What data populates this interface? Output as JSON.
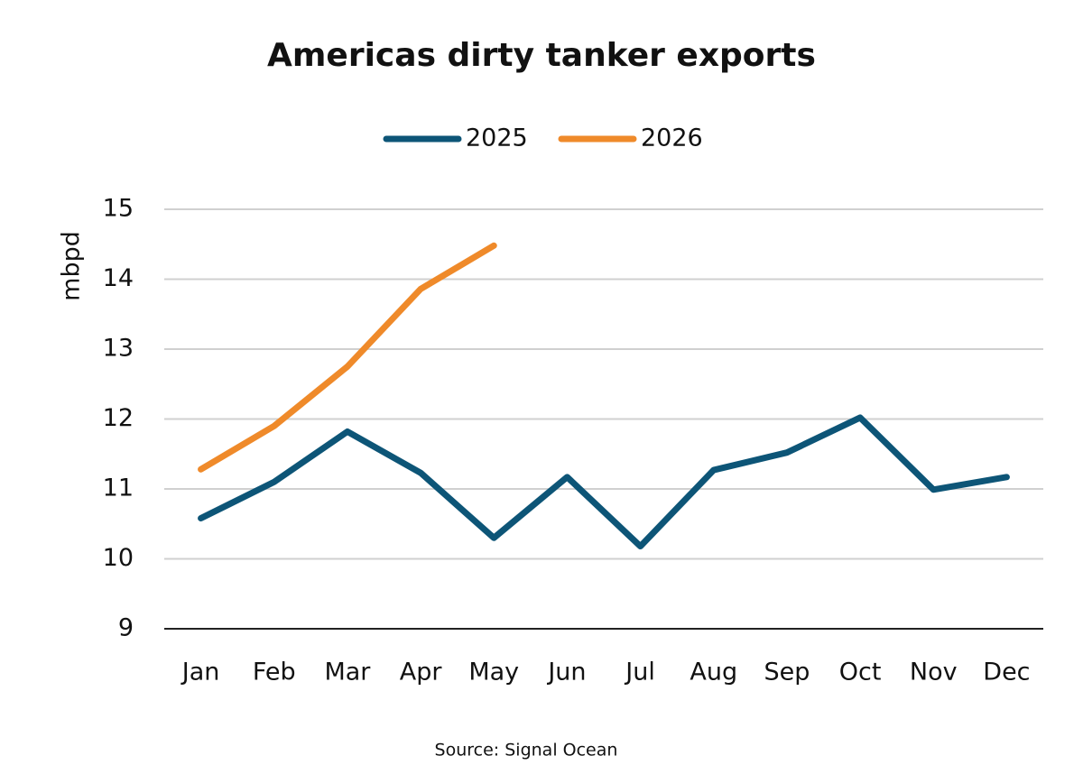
{
  "chart_data": {
    "type": "line",
    "title": "Americas dirty tanker exports",
    "ylabel": "mbpd",
    "source": "Source: Signal Ocean",
    "categories": [
      "Jan",
      "Feb",
      "Mar",
      "Apr",
      "May",
      "Jun",
      "Jul",
      "Aug",
      "Sep",
      "Oct",
      "Nov",
      "Dec"
    ],
    "series": [
      {
        "name": "2025",
        "color": "#0d5577",
        "values": [
          10.58,
          11.1,
          11.82,
          11.23,
          10.3,
          11.17,
          10.18,
          11.27,
          11.52,
          12.02,
          10.99,
          11.17
        ]
      },
      {
        "name": "2026",
        "color": "#ef8a2a",
        "values": [
          11.28,
          11.9,
          12.75,
          13.86,
          14.48,
          null,
          null,
          null,
          null,
          null,
          null,
          null
        ]
      }
    ],
    "ylim": [
      9,
      15
    ],
    "yticks": [
      9,
      10,
      11,
      12,
      13,
      14,
      15
    ],
    "grid": true
  }
}
